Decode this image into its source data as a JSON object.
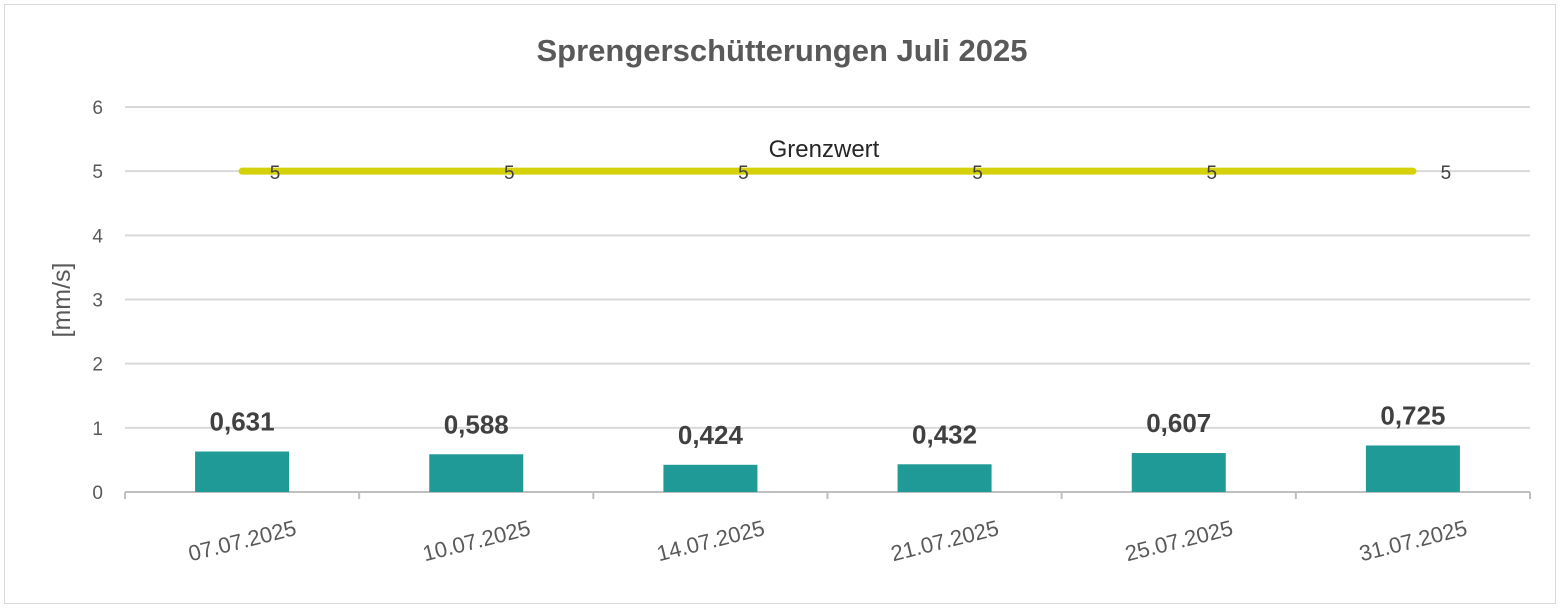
{
  "chart_data": {
    "type": "bar",
    "title": "Sprengerschütterungen Juli 2025",
    "xlabel": "",
    "ylabel": "[mm/s]",
    "ylim": [
      0,
      6
    ],
    "yticks": [
      0,
      1,
      2,
      3,
      4,
      5,
      6
    ],
    "grid": true,
    "legend": "none",
    "categories": [
      "07.07.2025",
      "10.07.2025",
      "14.07.2025",
      "21.07.2025",
      "25.07.2025",
      "31.07.2025"
    ],
    "series": [
      {
        "type": "bar",
        "values": [
          0.631,
          0.588,
          0.424,
          0.432,
          0.607,
          0.725
        ],
        "labels": [
          "0,631",
          "0,588",
          "0,424",
          "0,432",
          "0,607",
          "0,725"
        ],
        "color": "#1f9a96"
      },
      {
        "type": "line",
        "name": "Grenzwert",
        "values": [
          5,
          5,
          5,
          5,
          5,
          5
        ],
        "labels": [
          "5",
          "5",
          "5",
          "5",
          "5",
          "5"
        ],
        "color": "#d4d10a"
      }
    ]
  }
}
